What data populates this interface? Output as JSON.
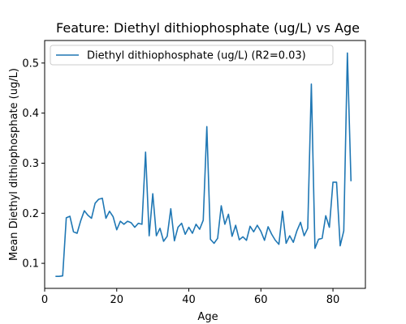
{
  "chart_data": {
    "type": "line",
    "title": "Feature: Diethyl dithiophosphate (ug/L) vs Age",
    "xlabel": "Age",
    "ylabel": "Mean Diethyl dithiophosphate (ug/L)",
    "xlim": [
      0,
      89
    ],
    "ylim": [
      0.05,
      0.545
    ],
    "xticks": [
      0,
      20,
      40,
      60,
      80
    ],
    "yticks": [
      0.1,
      0.2,
      0.3,
      0.4,
      0.5
    ],
    "xtick_labels": [
      "0",
      "20",
      "40",
      "60",
      "80"
    ],
    "ytick_labels": [
      "0.1",
      "0.2",
      "0.3",
      "0.4",
      "0.5"
    ],
    "grid": false,
    "legend_position": "top-left",
    "series": [
      {
        "name": "Diethyl dithiophosphate (ug/L) (R2=0.03)",
        "color": "#1f77b4",
        "x": [
          3,
          4,
          5,
          6,
          7,
          8,
          9,
          10,
          11,
          12,
          13,
          14,
          15,
          16,
          17,
          18,
          19,
          20,
          21,
          22,
          23,
          24,
          25,
          26,
          27,
          28,
          29,
          30,
          31,
          32,
          33,
          34,
          35,
          36,
          37,
          38,
          39,
          40,
          41,
          42,
          43,
          44,
          45,
          46,
          47,
          48,
          49,
          50,
          51,
          52,
          53,
          54,
          55,
          56,
          57,
          58,
          59,
          60,
          61,
          62,
          63,
          64,
          65,
          66,
          67,
          68,
          69,
          70,
          71,
          72,
          73,
          74,
          75,
          76,
          77,
          78,
          79,
          80,
          81,
          82,
          83,
          84,
          85
        ],
        "y": [
          0.074,
          0.074,
          0.075,
          0.191,
          0.194,
          0.163,
          0.16,
          0.185,
          0.205,
          0.196,
          0.19,
          0.22,
          0.228,
          0.23,
          0.19,
          0.204,
          0.193,
          0.167,
          0.184,
          0.178,
          0.184,
          0.181,
          0.172,
          0.18,
          0.178,
          0.322,
          0.155,
          0.239,
          0.155,
          0.17,
          0.144,
          0.154,
          0.209,
          0.145,
          0.172,
          0.18,
          0.158,
          0.172,
          0.16,
          0.178,
          0.168,
          0.186,
          0.373,
          0.148,
          0.14,
          0.15,
          0.215,
          0.178,
          0.198,
          0.154,
          0.176,
          0.147,
          0.153,
          0.146,
          0.174,
          0.163,
          0.176,
          0.164,
          0.146,
          0.173,
          0.158,
          0.146,
          0.138,
          0.204,
          0.14,
          0.155,
          0.142,
          0.165,
          0.182,
          0.155,
          0.17,
          0.458,
          0.13,
          0.148,
          0.15,
          0.195,
          0.172,
          0.262,
          0.262,
          0.135,
          0.165,
          0.52,
          0.264
        ]
      }
    ]
  }
}
